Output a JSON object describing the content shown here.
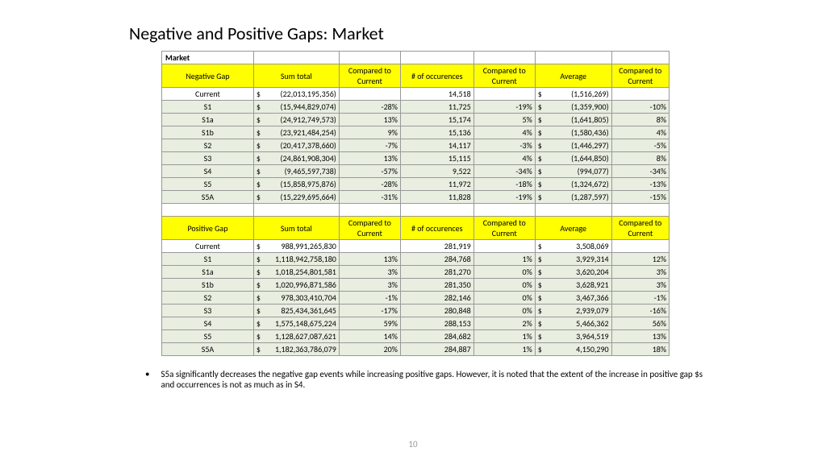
{
  "title": "Negative and Positive Gaps: Market",
  "market_label": "Market",
  "cols": [
    "Negative Gap",
    "Sum total",
    "Compared to Current",
    "# of occurences",
    "Compared to Current",
    "Average",
    "Compared to Current"
  ],
  "cols2": [
    "Positive Gap",
    "Sum total",
    "Compared to Current",
    "# of occurences",
    "Compared to Current",
    "Average",
    "Compared to Current"
  ],
  "neg": [
    {
      "n": "Current",
      "st": "(22,013,195,356)",
      "c1": "",
      "oc": "14,518",
      "c2": "",
      "av": "(1,516,269)",
      "c3": "",
      "alt": 0
    },
    {
      "n": "S1",
      "st": "(15,944,829,074)",
      "c1": "-28%",
      "oc": "11,725",
      "c2": "-19%",
      "av": "(1,359,900)",
      "c3": "-10%",
      "alt": 1
    },
    {
      "n": "S1a",
      "st": "(24,912,749,573)",
      "c1": "13%",
      "oc": "15,174",
      "c2": "5%",
      "av": "(1,641,805)",
      "c3": "8%",
      "alt": 1
    },
    {
      "n": "S1b",
      "st": "(23,921,484,254)",
      "c1": "9%",
      "oc": "15,136",
      "c2": "4%",
      "av": "(1,580,436)",
      "c3": "4%",
      "alt": 1
    },
    {
      "n": "S2",
      "st": "(20,417,378,660)",
      "c1": "-7%",
      "oc": "14,117",
      "c2": "-3%",
      "av": "(1,446,297)",
      "c3": "-5%",
      "alt": 1
    },
    {
      "n": "S3",
      "st": "(24,861,908,304)",
      "c1": "13%",
      "oc": "15,115",
      "c2": "4%",
      "av": "(1,644,850)",
      "c3": "8%",
      "alt": 1
    },
    {
      "n": "S4",
      "st": "(9,465,597,738)",
      "c1": "-57%",
      "oc": "9,522",
      "c2": "-34%",
      "av": "(994,077)",
      "c3": "-34%",
      "alt": 1
    },
    {
      "n": "S5",
      "st": "(15,858,975,876)",
      "c1": "-28%",
      "oc": "11,972",
      "c2": "-18%",
      "av": "(1,324,672)",
      "c3": "-13%",
      "alt": 1
    },
    {
      "n": "S5A",
      "st": "(15,229,695,664)",
      "c1": "-31%",
      "oc": "11,828",
      "c2": "-19%",
      "av": "(1,287,597)",
      "c3": "-15%",
      "alt": 1
    }
  ],
  "pos": [
    {
      "n": "Current",
      "st": "988,991,265,830",
      "c1": "",
      "oc": "281,919",
      "c2": "",
      "av": "3,508,069",
      "c3": "",
      "alt": 0
    },
    {
      "n": "S1",
      "st": "1,118,942,758,180",
      "c1": "13%",
      "oc": "284,768",
      "c2": "1%",
      "av": "3,929,314",
      "c3": "12%",
      "alt": 1
    },
    {
      "n": "S1a",
      "st": "1,018,254,801,581",
      "c1": "3%",
      "oc": "281,270",
      "c2": "0%",
      "av": "3,620,204",
      "c3": "3%",
      "alt": 1
    },
    {
      "n": "S1b",
      "st": "1,020,996,871,586",
      "c1": "3%",
      "oc": "281,350",
      "c2": "0%",
      "av": "3,628,921",
      "c3": "3%",
      "alt": 1
    },
    {
      "n": "S2",
      "st": "978,303,410,704",
      "c1": "-1%",
      "oc": "282,146",
      "c2": "0%",
      "av": "3,467,366",
      "c3": "-1%",
      "alt": 1
    },
    {
      "n": "S3",
      "st": "825,434,361,645",
      "c1": "-17%",
      "oc": "280,848",
      "c2": "0%",
      "av": "2,939,079",
      "c3": "-16%",
      "alt": 1
    },
    {
      "n": "S4",
      "st": "1,575,148,675,224",
      "c1": "59%",
      "oc": "288,153",
      "c2": "2%",
      "av": "5,466,362",
      "c3": "56%",
      "alt": 1
    },
    {
      "n": "S5",
      "st": "1,128,627,087,621",
      "c1": "14%",
      "oc": "284,682",
      "c2": "1%",
      "av": "3,964,519",
      "c3": "13%",
      "alt": 1
    },
    {
      "n": "S5A",
      "st": "1,182,363,786,079",
      "c1": "20%",
      "oc": "284,887",
      "c2": "1%",
      "av": "4,150,290",
      "c3": "18%",
      "alt": 1
    }
  ],
  "note": "S5a significantly decreases the negative gap events while increasing positive gaps. However, it is noted that the extent of the increase in positive gap $s and occurrences is not as much as in S4.",
  "page": "10",
  "style": {
    "hdr_bg": "#ffff00",
    "alt_bg": "#e8eee0",
    "border": "#999999",
    "font_size": 10
  }
}
